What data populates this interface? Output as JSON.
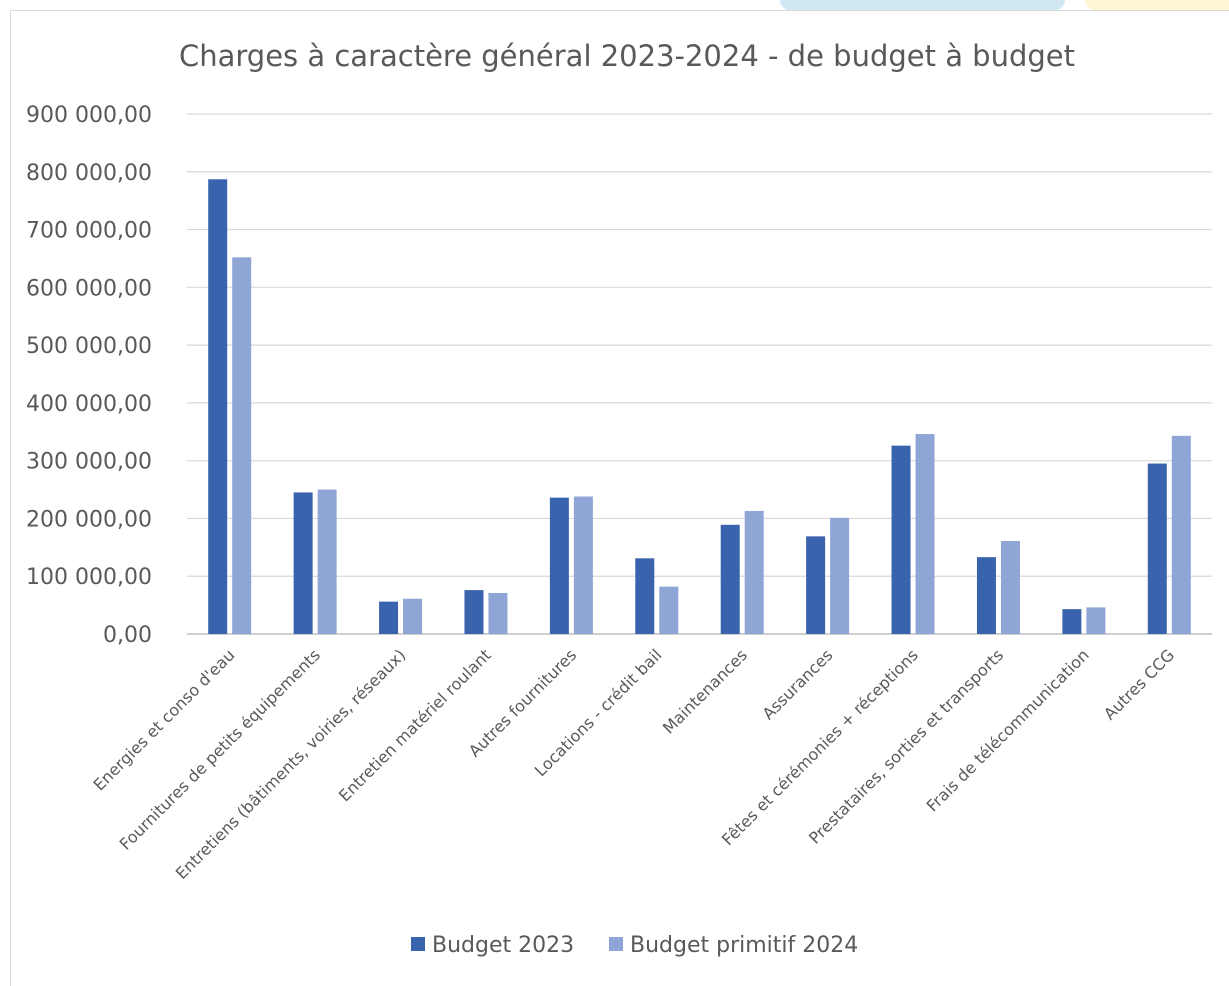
{
  "chart_data": {
    "type": "bar",
    "title": "Charges à caractère général 2023-2024 - de budget à budget",
    "xlabel": "",
    "ylabel": "",
    "ylim": [
      0,
      900000
    ],
    "yticks": [
      0,
      100000,
      200000,
      300000,
      400000,
      500000,
      600000,
      700000,
      800000,
      900000
    ],
    "ytick_labels": [
      "0,00",
      "100 000,00",
      "200 000,00",
      "300 000,00",
      "400 000,00",
      "500 000,00",
      "600 000,00",
      "700 000,00",
      "800 000,00",
      "900 000,00"
    ],
    "grid": true,
    "legend_position": "bottom",
    "categories": [
      "Energies et conso d'eau",
      "Fournitures de petits équipements",
      "Entretiens (bâtiments, voiries, réseaux)",
      "Entretien matériel roulant",
      "Autres fournitures",
      "Locations - crédit bail",
      "Maintenances",
      "Assurances",
      "Fêtes et cérémonies + réceptions",
      "Prestataires, sorties et transports",
      "Frais de télécommunication",
      "Autres CCG"
    ],
    "series": [
      {
        "name": "Budget 2023",
        "color": "#3a63ae",
        "values": [
          787000,
          245000,
          56000,
          76000,
          236000,
          131000,
          189000,
          169000,
          326000,
          133000,
          43000,
          295000
        ]
      },
      {
        "name": "Budget primitif 2024",
        "color": "#8fa5d6",
        "values": [
          652000,
          250000,
          61000,
          71000,
          238000,
          82000,
          213000,
          201000,
          346000,
          161000,
          46000,
          343000
        ]
      }
    ]
  }
}
